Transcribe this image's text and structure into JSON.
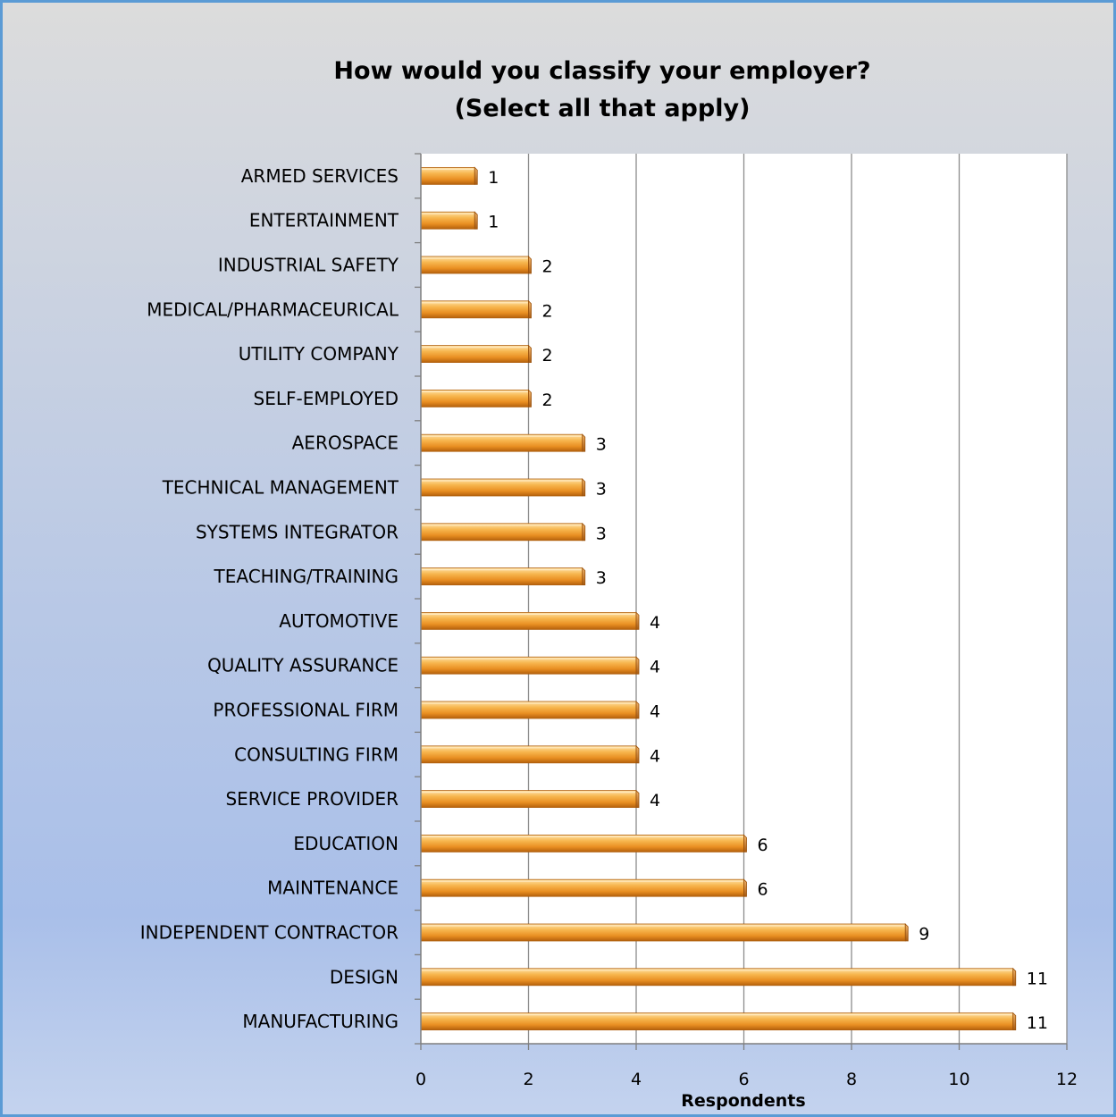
{
  "chart_data": {
    "type": "bar",
    "orientation": "horizontal",
    "title": [
      "How would you classify your employer?",
      "(Select all that apply)"
    ],
    "xlabel": "Respondents",
    "ylabel": "",
    "xlim": [
      0,
      12
    ],
    "xticks": [
      "0",
      "2",
      "4",
      "6",
      "8",
      "10",
      "12"
    ],
    "grid": true,
    "categories": [
      "ARMED SERVICES",
      "ENTERTAINMENT",
      "INDUSTRIAL SAFETY",
      "MEDICAL/PHARMACEURICAL",
      "UTILITY COMPANY",
      "SELF-EMPLOYED",
      "AEROSPACE",
      "TECHNICAL MANAGEMENT",
      "SYSTEMS INTEGRATOR",
      "TEACHING/TRAINING",
      "AUTOMOTIVE",
      "QUALITY ASSURANCE",
      "PROFESSIONAL FIRM",
      "CONSULTING FIRM",
      "SERVICE PROVIDER",
      "EDUCATION",
      "MAINTENANCE",
      "INDEPENDENT CONTRACTOR",
      "DESIGN",
      "MANUFACTURING"
    ],
    "values": [
      1,
      1,
      2,
      2,
      2,
      2,
      3,
      3,
      3,
      3,
      4,
      4,
      4,
      4,
      4,
      6,
      6,
      9,
      11,
      11
    ],
    "colors": {
      "bar": "#F0A030",
      "bar_dark": "#C86A10",
      "bar_light": "#FCD89A",
      "frame_border": "#5B9BD5",
      "background_top": "#DCDCDC",
      "background_bottom": "#AEC3E8",
      "plot_area": "#FFFFFF",
      "gridline": "#8C8C8C"
    }
  }
}
